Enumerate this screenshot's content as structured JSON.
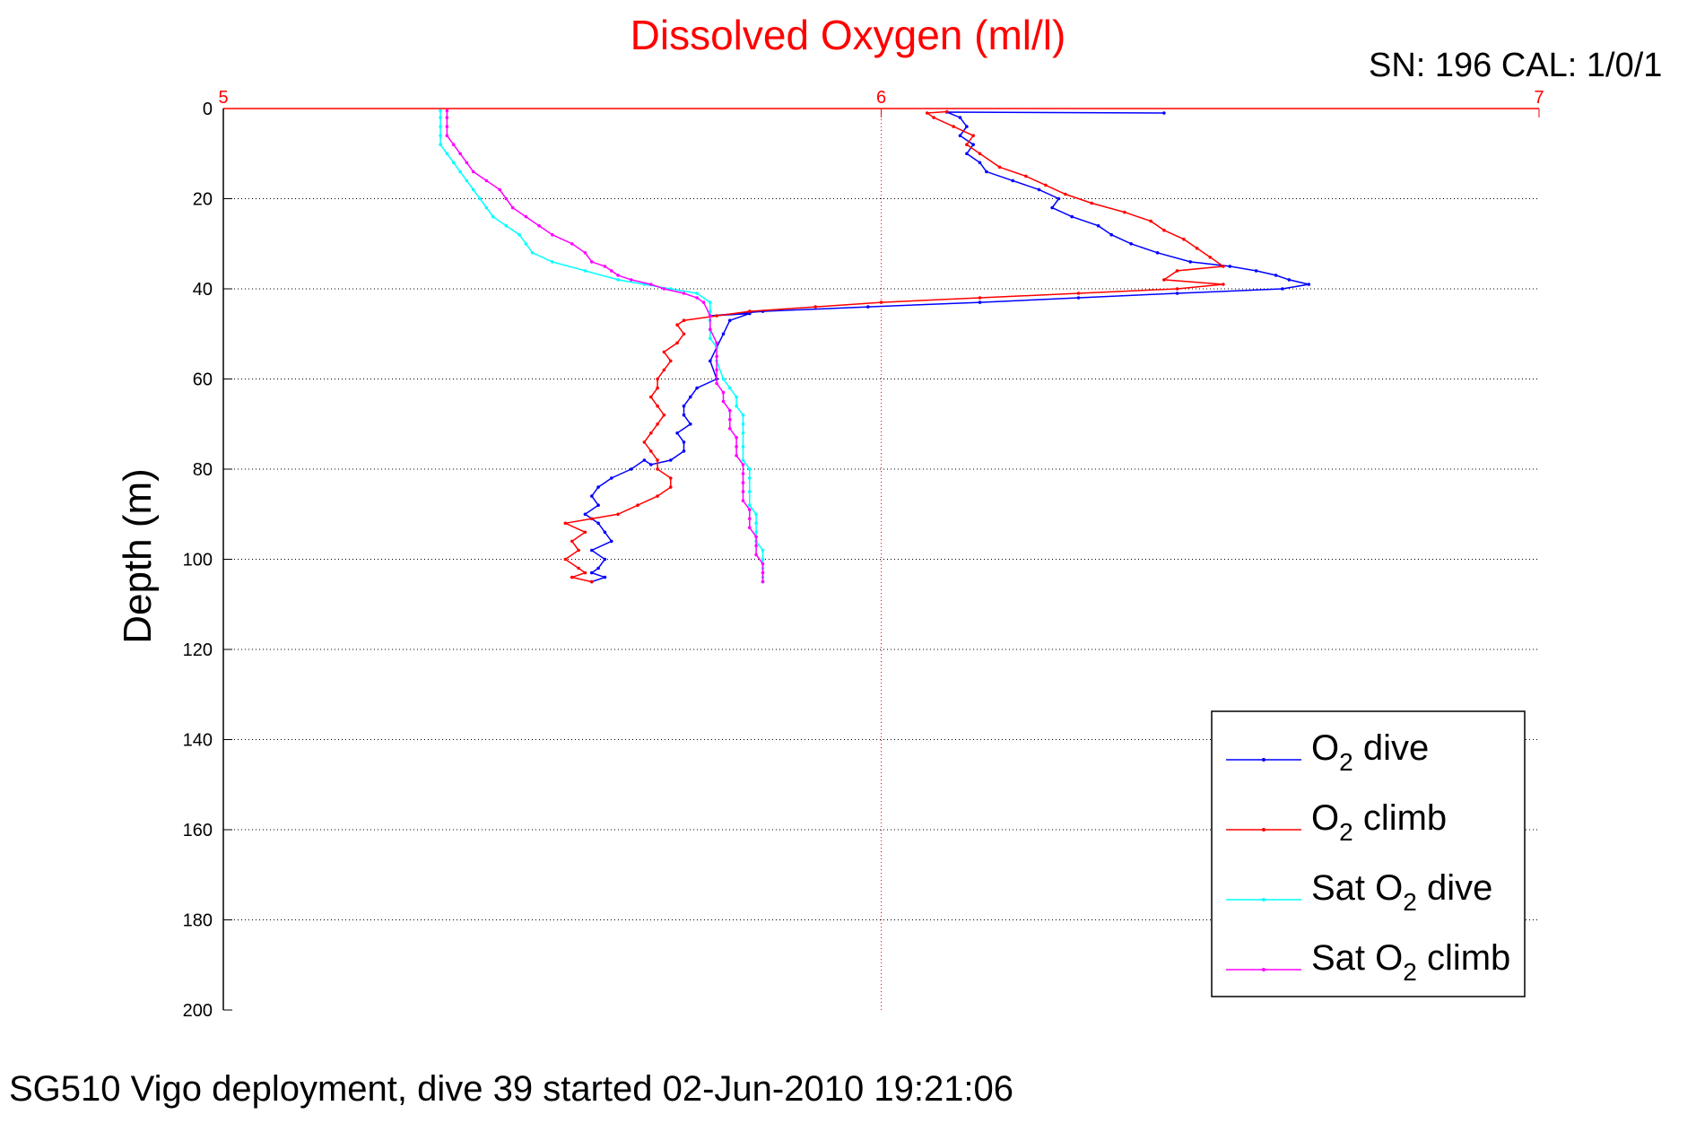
{
  "chart_data": {
    "type": "line",
    "title": "Dissolved Oxygen (ml/l)",
    "ylabel": "Depth (m)",
    "xlabel": "",
    "xlim": [
      5,
      7
    ],
    "ylim": [
      0,
      200
    ],
    "y_reversed": true,
    "x_ticks": [
      "5",
      "6",
      "7"
    ],
    "y_ticks": [
      "0",
      "20",
      "40",
      "60",
      "80",
      "100",
      "120",
      "140",
      "160",
      "180",
      "200"
    ],
    "grid": true,
    "legend_position": "bottom-right",
    "series": [
      {
        "name": "O2 dive",
        "legend_parts": [
          "O",
          "2",
          " dive"
        ],
        "color": "#0000ff",
        "points": [
          [
            6.43,
            1
          ],
          [
            6.1,
            0.8
          ],
          [
            6.12,
            2
          ],
          [
            6.13,
            4
          ],
          [
            6.12,
            6
          ],
          [
            6.14,
            8
          ],
          [
            6.13,
            10
          ],
          [
            6.15,
            12
          ],
          [
            6.16,
            14
          ],
          [
            6.2,
            16
          ],
          [
            6.24,
            18
          ],
          [
            6.27,
            20
          ],
          [
            6.26,
            22
          ],
          [
            6.29,
            24
          ],
          [
            6.33,
            26
          ],
          [
            6.35,
            28
          ],
          [
            6.38,
            30
          ],
          [
            6.42,
            32
          ],
          [
            6.47,
            34
          ],
          [
            6.53,
            35
          ],
          [
            6.57,
            36
          ],
          [
            6.6,
            37
          ],
          [
            6.62,
            38
          ],
          [
            6.65,
            39
          ],
          [
            6.61,
            40
          ],
          [
            6.45,
            41
          ],
          [
            6.3,
            42
          ],
          [
            6.15,
            43
          ],
          [
            5.98,
            44
          ],
          [
            5.82,
            45
          ],
          [
            5.74,
            46
          ],
          [
            5.8,
            45.5
          ],
          [
            5.77,
            47
          ],
          [
            5.76,
            50
          ],
          [
            5.75,
            53
          ],
          [
            5.74,
            56
          ],
          [
            5.75,
            60
          ],
          [
            5.72,
            62
          ],
          [
            5.71,
            64
          ],
          [
            5.7,
            66
          ],
          [
            5.7,
            68
          ],
          [
            5.71,
            70
          ],
          [
            5.69,
            72
          ],
          [
            5.7,
            74
          ],
          [
            5.7,
            76
          ],
          [
            5.68,
            78
          ],
          [
            5.65,
            79
          ],
          [
            5.64,
            78
          ],
          [
            5.62,
            80
          ],
          [
            5.59,
            82
          ],
          [
            5.57,
            84
          ],
          [
            5.56,
            86
          ],
          [
            5.57,
            88
          ],
          [
            5.55,
            90
          ],
          [
            5.57,
            92
          ],
          [
            5.58,
            94
          ],
          [
            5.59,
            96
          ],
          [
            5.56,
            98
          ],
          [
            5.58,
            100
          ],
          [
            5.57,
            102
          ],
          [
            5.56,
            103
          ],
          [
            5.58,
            104
          ],
          [
            5.56,
            105
          ]
        ]
      },
      {
        "name": "O2 climb",
        "legend_parts": [
          "O",
          "2",
          " climb"
        ],
        "color": "#ff0000",
        "points": [
          [
            5.56,
            105
          ],
          [
            5.53,
            104
          ],
          [
            5.55,
            103
          ],
          [
            5.54,
            102
          ],
          [
            5.52,
            100
          ],
          [
            5.54,
            98
          ],
          [
            5.53,
            96
          ],
          [
            5.55,
            94
          ],
          [
            5.52,
            92
          ],
          [
            5.56,
            91
          ],
          [
            5.6,
            90
          ],
          [
            5.63,
            88
          ],
          [
            5.66,
            86
          ],
          [
            5.68,
            84
          ],
          [
            5.68,
            82
          ],
          [
            5.66,
            80
          ],
          [
            5.66,
            78
          ],
          [
            5.65,
            76
          ],
          [
            5.64,
            74
          ],
          [
            5.65,
            72
          ],
          [
            5.66,
            70
          ],
          [
            5.67,
            68
          ],
          [
            5.66,
            66
          ],
          [
            5.65,
            64
          ],
          [
            5.66,
            62
          ],
          [
            5.66,
            60
          ],
          [
            5.67,
            58
          ],
          [
            5.68,
            56
          ],
          [
            5.67,
            54
          ],
          [
            5.69,
            52
          ],
          [
            5.7,
            50
          ],
          [
            5.69,
            48
          ],
          [
            5.7,
            47
          ],
          [
            5.75,
            46
          ],
          [
            5.8,
            45
          ],
          [
            5.9,
            44
          ],
          [
            6.0,
            43
          ],
          [
            6.15,
            42
          ],
          [
            6.3,
            41
          ],
          [
            6.45,
            40
          ],
          [
            6.52,
            39
          ],
          [
            6.43,
            38
          ],
          [
            6.45,
            36
          ],
          [
            6.52,
            35
          ],
          [
            6.5,
            33
          ],
          [
            6.48,
            31
          ],
          [
            6.46,
            29
          ],
          [
            6.43,
            27
          ],
          [
            6.41,
            25
          ],
          [
            6.37,
            23
          ],
          [
            6.32,
            21
          ],
          [
            6.28,
            19
          ],
          [
            6.25,
            17
          ],
          [
            6.22,
            15
          ],
          [
            6.18,
            13
          ],
          [
            6.15,
            10
          ],
          [
            6.13,
            8
          ],
          [
            6.14,
            6
          ],
          [
            6.11,
            4
          ],
          [
            6.08,
            2
          ],
          [
            6.07,
            1
          ],
          [
            6.1,
            0.7
          ]
        ]
      },
      {
        "name": "Sat O2 dive",
        "legend_parts": [
          "Sat O",
          "2",
          " dive"
        ],
        "color": "#00ffff",
        "points": [
          [
            5.33,
            0.5
          ],
          [
            5.33,
            2
          ],
          [
            5.33,
            4
          ],
          [
            5.33,
            6
          ],
          [
            5.33,
            8
          ],
          [
            5.34,
            10
          ],
          [
            5.35,
            12
          ],
          [
            5.36,
            14
          ],
          [
            5.37,
            16
          ],
          [
            5.38,
            18
          ],
          [
            5.39,
            20
          ],
          [
            5.4,
            22
          ],
          [
            5.41,
            24
          ],
          [
            5.43,
            26
          ],
          [
            5.45,
            28
          ],
          [
            5.46,
            30
          ],
          [
            5.47,
            32
          ],
          [
            5.5,
            34
          ],
          [
            5.55,
            36
          ],
          [
            5.6,
            38
          ],
          [
            5.64,
            39
          ],
          [
            5.68,
            40
          ],
          [
            5.72,
            41
          ],
          [
            5.74,
            43
          ],
          [
            5.74,
            45
          ],
          [
            5.74,
            47
          ],
          [
            5.74,
            49
          ],
          [
            5.74,
            51
          ],
          [
            5.75,
            53
          ],
          [
            5.75,
            56
          ],
          [
            5.76,
            60
          ],
          [
            5.77,
            62
          ],
          [
            5.78,
            64
          ],
          [
            5.78,
            66
          ],
          [
            5.79,
            68
          ],
          [
            5.79,
            70
          ],
          [
            5.79,
            72
          ],
          [
            5.79,
            75
          ],
          [
            5.79,
            78
          ],
          [
            5.8,
            80
          ],
          [
            5.8,
            82
          ],
          [
            5.8,
            85
          ],
          [
            5.8,
            88
          ],
          [
            5.81,
            90
          ],
          [
            5.81,
            92
          ],
          [
            5.81,
            94
          ],
          [
            5.81,
            96
          ],
          [
            5.82,
            98
          ],
          [
            5.82,
            100
          ],
          [
            5.82,
            102
          ],
          [
            5.82,
            104
          ],
          [
            5.82,
            105
          ]
        ]
      },
      {
        "name": "Sat O2 climb",
        "legend_parts": [
          "Sat O",
          "2",
          " climb"
        ],
        "color": "#ff00ff",
        "points": [
          [
            5.82,
            105
          ],
          [
            5.82,
            103
          ],
          [
            5.82,
            101
          ],
          [
            5.81,
            99
          ],
          [
            5.81,
            97
          ],
          [
            5.81,
            95
          ],
          [
            5.8,
            93
          ],
          [
            5.8,
            91
          ],
          [
            5.8,
            89
          ],
          [
            5.79,
            87
          ],
          [
            5.79,
            85
          ],
          [
            5.79,
            83
          ],
          [
            5.79,
            81
          ],
          [
            5.79,
            79
          ],
          [
            5.78,
            77
          ],
          [
            5.78,
            75
          ],
          [
            5.78,
            73
          ],
          [
            5.77,
            71
          ],
          [
            5.77,
            69
          ],
          [
            5.77,
            67
          ],
          [
            5.76,
            65
          ],
          [
            5.76,
            63
          ],
          [
            5.75,
            61
          ],
          [
            5.75,
            58
          ],
          [
            5.75,
            55
          ],
          [
            5.75,
            52
          ],
          [
            5.74,
            49
          ],
          [
            5.74,
            46
          ],
          [
            5.73,
            43
          ],
          [
            5.72,
            42
          ],
          [
            5.7,
            41
          ],
          [
            5.67,
            40
          ],
          [
            5.65,
            39
          ],
          [
            5.62,
            38
          ],
          [
            5.6,
            37
          ],
          [
            5.59,
            36
          ],
          [
            5.58,
            35
          ],
          [
            5.56,
            34
          ],
          [
            5.55,
            32
          ],
          [
            5.53,
            30
          ],
          [
            5.5,
            28
          ],
          [
            5.48,
            26
          ],
          [
            5.46,
            24
          ],
          [
            5.44,
            22
          ],
          [
            5.43,
            20
          ],
          [
            5.42,
            18
          ],
          [
            5.4,
            16
          ],
          [
            5.38,
            14
          ],
          [
            5.37,
            12
          ],
          [
            5.36,
            10
          ],
          [
            5.35,
            8
          ],
          [
            5.34,
            6
          ],
          [
            5.34,
            4
          ],
          [
            5.34,
            2
          ],
          [
            5.34,
            0.5
          ]
        ]
      }
    ]
  },
  "header": {
    "title": "Dissolved Oxygen (ml/l)",
    "serial": "SN: 196  CAL: 1/0/1"
  },
  "footer": {
    "caption": "SG510 Vigo deployment, dive 39 started 02-Jun-2010 19:21:06"
  }
}
